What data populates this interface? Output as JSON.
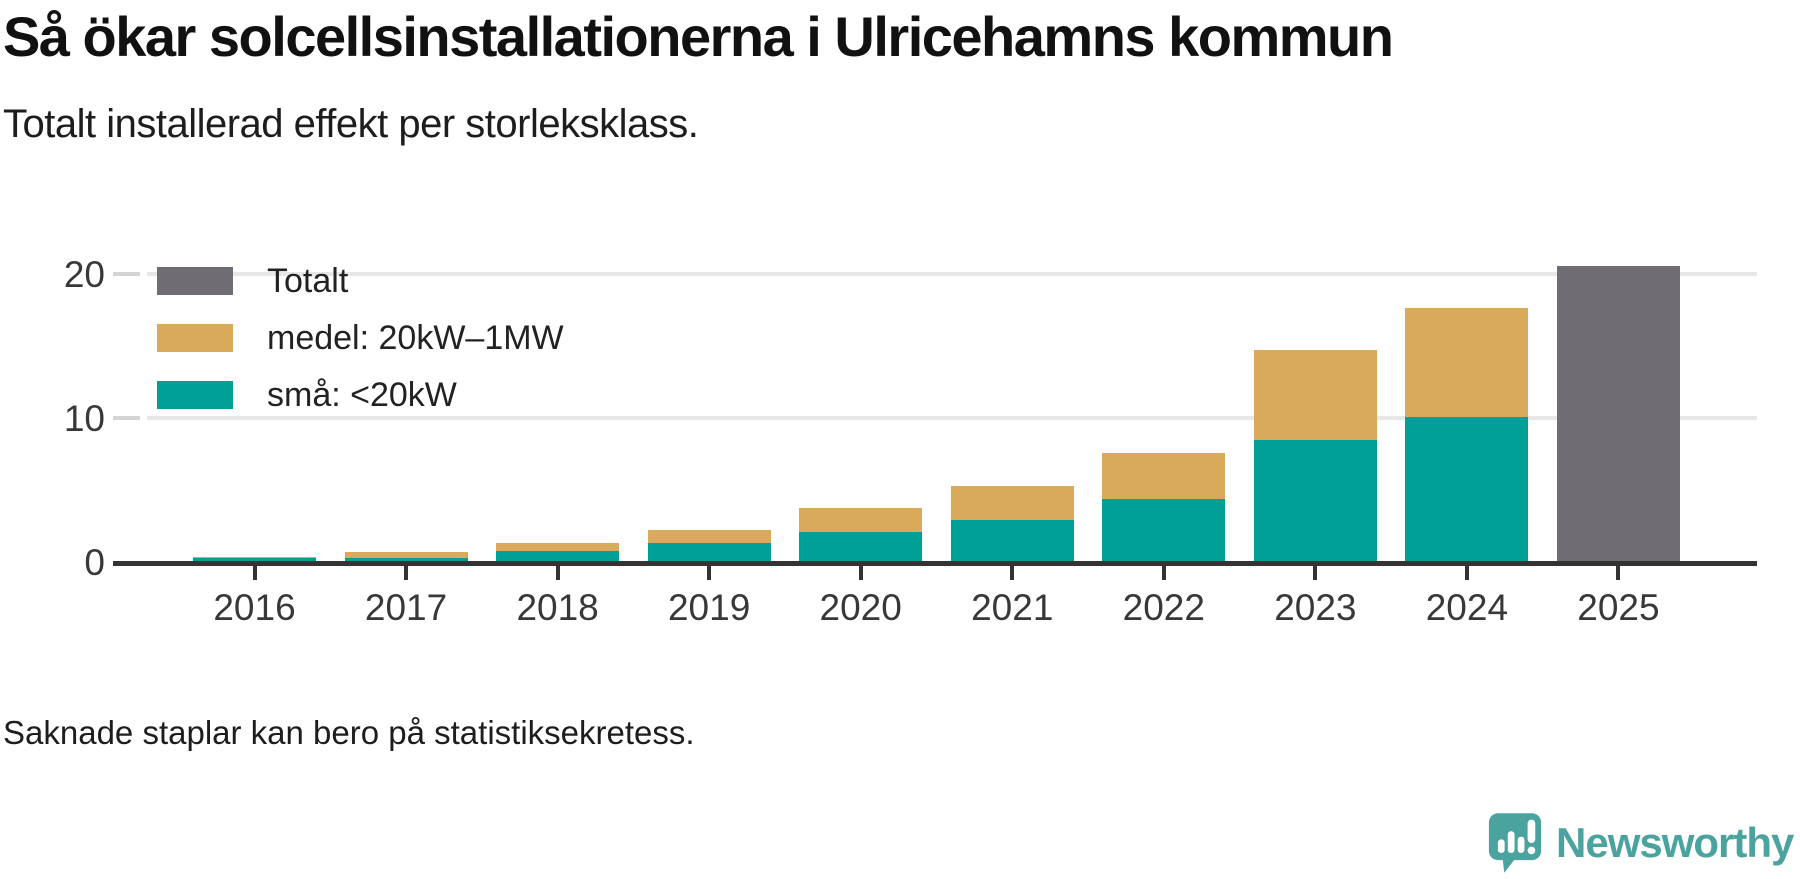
{
  "header": {
    "title": "Så ökar solcellsinstallationerna i Ulricehamns kommun",
    "subtitle": "Totalt installerad effekt per storleksklass."
  },
  "footer": {
    "note": "Saknade staplar kan bero på statistiksekretess.",
    "brand": "Newsworthy"
  },
  "colors": {
    "sma": "#00A096",
    "medel": "#D9AA5C",
    "totalt": "#706C74",
    "brand_teal": "#4BA3A0",
    "axis": "#333333",
    "axis_text": "#383838",
    "gridline": "#E7E7E7"
  },
  "chart_data": {
    "type": "bar",
    "stacked": true,
    "title": "Så ökar solcellsinstallationerna i Ulricehamns kommun",
    "subtitle": "Totalt installerad effekt per storleksklass.",
    "categories": [
      "2016",
      "2017",
      "2018",
      "2019",
      "2020",
      "2021",
      "2022",
      "2023",
      "2024",
      "2025"
    ],
    "series": [
      {
        "name": "Totalt",
        "color": "#706C74",
        "values": [
          null,
          null,
          null,
          null,
          null,
          null,
          null,
          null,
          null,
          20.55
        ]
      },
      {
        "name": "medel: 20kW–1MW",
        "color": "#D9AA5C",
        "values": [
          0.05,
          0.4,
          0.6,
          0.95,
          1.65,
          2.4,
          3.2,
          6.25,
          7.55,
          null
        ]
      },
      {
        "name": "små: <20kW",
        "color": "#00A096",
        "values": [
          0.3,
          0.3,
          0.75,
          1.3,
          2.1,
          2.9,
          4.4,
          8.5,
          10.1,
          null
        ]
      }
    ],
    "stack_totals": [
      0.35,
      0.7,
      1.35,
      2.25,
      3.75,
      5.3,
      7.6,
      14.75,
      17.65,
      20.55
    ],
    "legend": [
      {
        "label": "Totalt",
        "color": "#706C74"
      },
      {
        "label": "medel: 20kW–1MW",
        "color": "#D9AA5C"
      },
      {
        "label": "små: <20kW",
        "color": "#00A096"
      }
    ],
    "xlabel": "",
    "ylabel": "",
    "yticks": [
      0,
      10,
      20
    ],
    "ylim": [
      0,
      21.6
    ],
    "grid": "horizontal",
    "legend_position": "top-left-inside"
  }
}
